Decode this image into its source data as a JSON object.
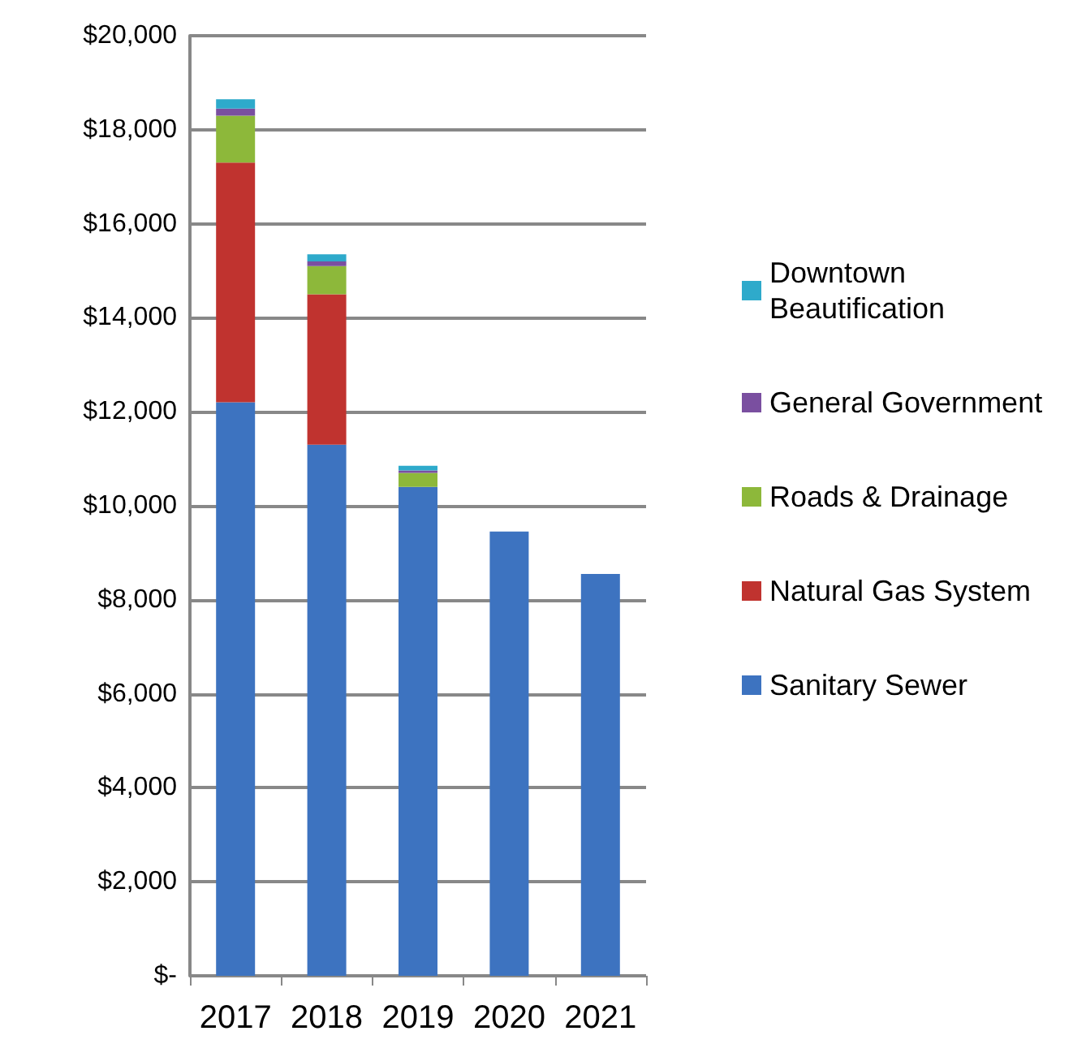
{
  "chart_data": {
    "type": "bar",
    "stacked": true,
    "categories": [
      "2017",
      "2018",
      "2019",
      "2020",
      "2021"
    ],
    "series": [
      {
        "name": "Sanitary Sewer",
        "color": "#3d73c0",
        "values": [
          12200,
          11300,
          10400,
          9450,
          8550
        ]
      },
      {
        "name": "Natural Gas System",
        "color": "#c0332f",
        "values": [
          5100,
          3200,
          0,
          0,
          0
        ]
      },
      {
        "name": "Roads & Drainage",
        "color": "#8db83a",
        "values": [
          1000,
          600,
          300,
          0,
          0
        ]
      },
      {
        "name": "General Government",
        "color": "#7a4fa0",
        "values": [
          150,
          100,
          50,
          0,
          0
        ]
      },
      {
        "name": "Downtown Beautification",
        "color": "#2eaacb",
        "values": [
          200,
          150,
          100,
          0,
          0
        ]
      }
    ],
    "ylim": [
      0,
      20000
    ],
    "yticks": [
      {
        "value": 0,
        "label": "$-"
      },
      {
        "value": 2000,
        "label": "$2,000"
      },
      {
        "value": 4000,
        "label": "$4,000"
      },
      {
        "value": 6000,
        "label": "$6,000"
      },
      {
        "value": 8000,
        "label": "$8,000"
      },
      {
        "value": 10000,
        "label": "$10,000"
      },
      {
        "value": 12000,
        "label": "$12,000"
      },
      {
        "value": 14000,
        "label": "$14,000"
      },
      {
        "value": 16000,
        "label": "$16,000"
      },
      {
        "value": 18000,
        "label": "$18,000"
      },
      {
        "value": 20000,
        "label": "$20,000"
      }
    ],
    "grid": "y",
    "legend": "right"
  }
}
